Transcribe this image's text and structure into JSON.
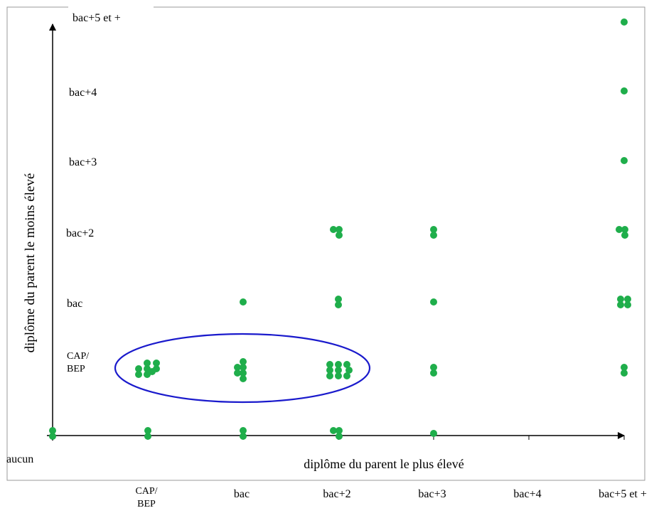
{
  "chart_data": {
    "type": "scatter",
    "title": "",
    "xlabel": "diplôme du parent le plus élevé",
    "ylabel": "diplôme du parent le moins élevé",
    "x_categories": [
      "aucun",
      "CAP/ BEP",
      "bac",
      "bac+2",
      "bac+3",
      "bac+4",
      "bac+5 et +"
    ],
    "x_tick_lines": [
      [
        "aucun"
      ],
      [
        "CAP/",
        "BEP"
      ],
      [
        "bac"
      ],
      [
        "bac+2"
      ],
      [
        "bac+3"
      ],
      [
        "bac+4"
      ],
      [
        "bac+5 et +"
      ]
    ],
    "y_categories": [
      "aucun",
      "CAP/ BEP",
      "bac",
      "bac+2",
      "bac+3",
      "bac+4",
      "bac+5 et +"
    ],
    "y_tick_lines": [
      [
        "aucun"
      ],
      [
        "CAP/",
        "BEP"
      ],
      [
        "bac"
      ],
      [
        "bac+2"
      ],
      [
        "bac+3"
      ],
      [
        "bac+4"
      ],
      [
        "bac+5 et +"
      ]
    ],
    "point_color": "#1fae4b",
    "points": [
      {
        "x": "aucun",
        "y": "aucun",
        "count": 2
      },
      {
        "x": "CAP/ BEP",
        "y": "aucun",
        "count": 2
      },
      {
        "x": "bac",
        "y": "aucun",
        "count": 2
      },
      {
        "x": "bac+2",
        "y": "aucun",
        "count": 3
      },
      {
        "x": "bac+3",
        "y": "aucun",
        "count": 1
      },
      {
        "x": "CAP/ BEP",
        "y": "CAP/ BEP",
        "count": 8
      },
      {
        "x": "bac",
        "y": "CAP/ BEP",
        "count": 6
      },
      {
        "x": "bac+2",
        "y": "CAP/ BEP",
        "count": 9
      },
      {
        "x": "bac+3",
        "y": "CAP/ BEP",
        "count": 2
      },
      {
        "x": "bac+5 et +",
        "y": "CAP/ BEP",
        "count": 2
      },
      {
        "x": "bac",
        "y": "bac",
        "count": 1
      },
      {
        "x": "bac+2",
        "y": "bac",
        "count": 2
      },
      {
        "x": "bac+3",
        "y": "bac",
        "count": 1
      },
      {
        "x": "bac+5 et +",
        "y": "bac",
        "count": 4
      },
      {
        "x": "bac+2",
        "y": "bac+2",
        "count": 3
      },
      {
        "x": "bac+3",
        "y": "bac+2",
        "count": 2
      },
      {
        "x": "bac+5 et +",
        "y": "bac+2",
        "count": 3
      },
      {
        "x": "bac+5 et +",
        "y": "bac+3",
        "count": 1
      },
      {
        "x": "bac+5 et +",
        "y": "bac+4",
        "count": 1
      },
      {
        "x": "bac+5 et +",
        "y": "bac+5 et +",
        "count": 1
      }
    ],
    "highlight": {
      "y": "CAP/ BEP",
      "x_from": "CAP/ BEP",
      "x_to": "bac+2",
      "color": "#1a1acc"
    },
    "grid": false,
    "legend": "none"
  }
}
